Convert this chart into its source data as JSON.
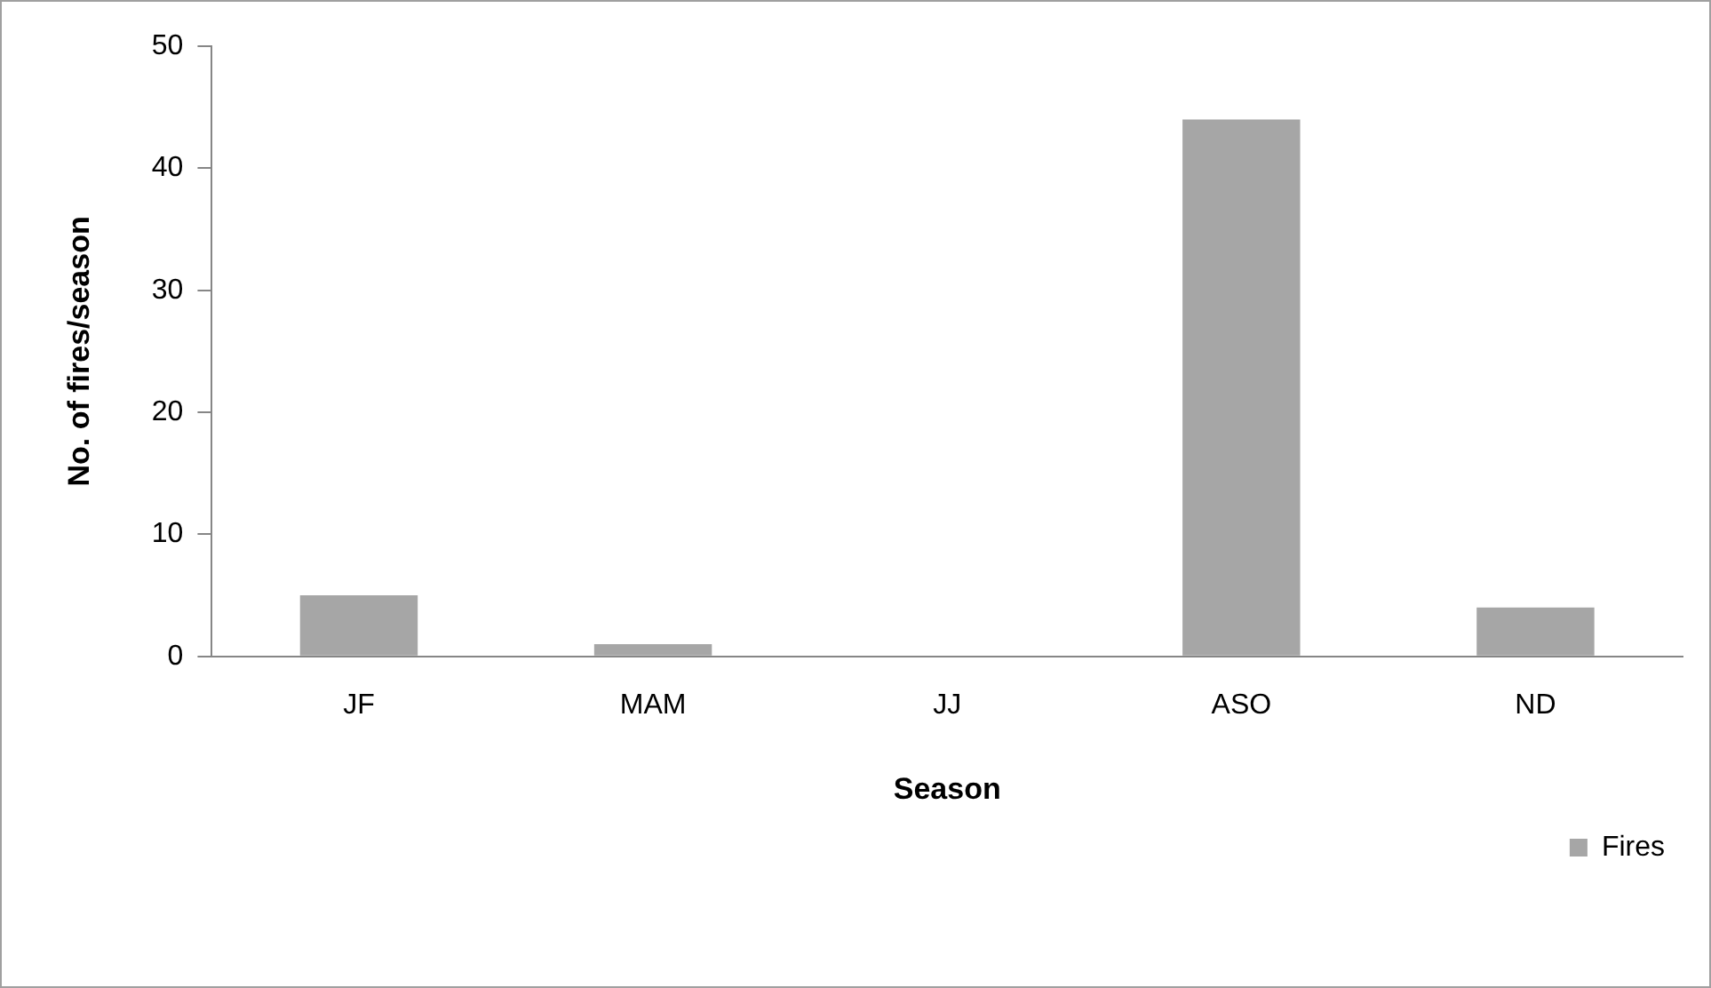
{
  "chart_data": {
    "type": "bar",
    "xlabel": "Season",
    "ylabel": "No. of fires/season",
    "categories": [
      "JF",
      "MAM",
      "JJ",
      "ASO",
      "ND"
    ],
    "series": [
      {
        "name": "Fires",
        "color": "#a6a6a6",
        "values": [
          5,
          1,
          0,
          44,
          4
        ]
      }
    ],
    "ylim": [
      0,
      50
    ],
    "yticks": [
      0,
      10,
      20,
      30,
      40,
      50
    ],
    "grid": false,
    "legend": "bottom"
  }
}
